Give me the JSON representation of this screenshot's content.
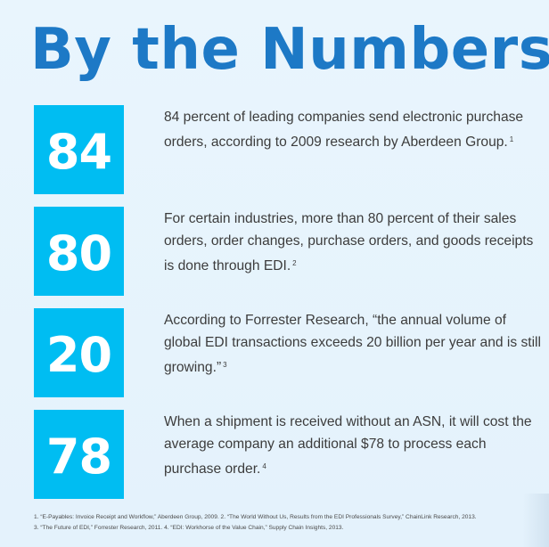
{
  "title": "By the Numbers",
  "colors": {
    "title": "#1d79c6",
    "box": "#00bdf2",
    "background": "#e7f4fd",
    "body_text": "#3c3c3c"
  },
  "stats": [
    {
      "number": "84",
      "text": "84 percent of leading companies send electronic purchase orders, according to 2009 research by Aberdeen Group.",
      "ref": "1"
    },
    {
      "number": "80",
      "text": "For certain industries, more than 80 percent of their sales orders, order changes, purchase orders, and goods receipts is done through EDI.",
      "ref": "2"
    },
    {
      "number": "20",
      "text": "According to Forrester Research, “the annual volume of global EDI transactions exceeds 20 billion per year and is still growing.”",
      "ref": "3"
    },
    {
      "number": "78",
      "text": "When a shipment is received without an ASN, it will cost the average company an additional $78 to process each purchase order.",
      "ref": "4"
    }
  ],
  "footnotes": {
    "line1": "1. “E-Payables: Invoice Receipt and Workflow,” Aberdeen Group, 2009.  2. “The World Without Us, Results from the EDI Professionals Survey,” ChainLink Research, 2013.",
    "line2": "3. “The Future of EDI,” Forrester Research, 2011.  4. “EDI: Workhorse of the Value Chain,” Supply Chain Insights, 2013."
  }
}
